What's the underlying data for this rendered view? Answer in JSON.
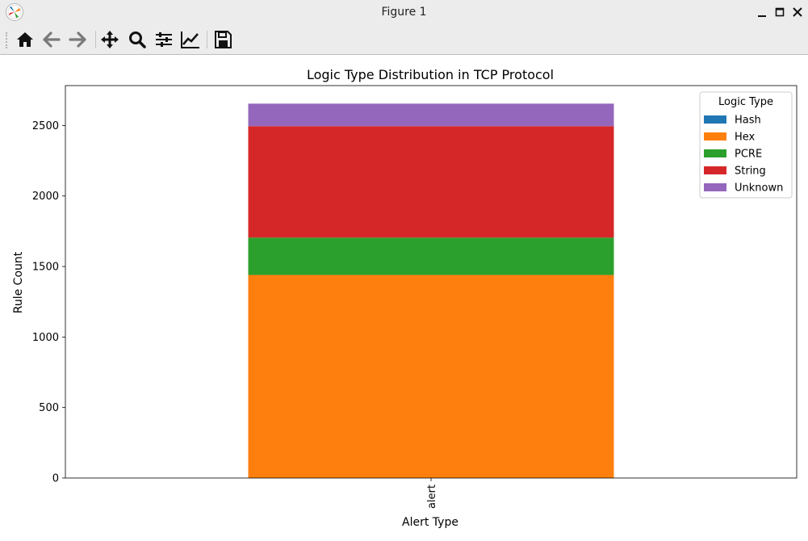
{
  "window": {
    "title": "Figure 1",
    "icons": [
      "app-icon",
      "minimize-icon",
      "maximize-icon",
      "close-icon"
    ]
  },
  "toolbar": {
    "buttons": [
      "home-icon",
      "back-arrow-icon",
      "forward-arrow-icon",
      "pan-icon",
      "zoom-icon",
      "configure-subplots-icon",
      "edit-axis-icon",
      "save-icon"
    ]
  },
  "chart_data": {
    "type": "bar",
    "stacked": true,
    "title": "Logic Type Distribution in TCP Protocol",
    "xlabel": "Alert Type",
    "ylabel": "Rule Count",
    "categories": [
      "alert"
    ],
    "ylim": [
      0,
      2783
    ],
    "yticks": [
      0,
      500,
      1000,
      1500,
      2000,
      2500
    ],
    "legend_title": "Logic Type",
    "legend_position": "top-right",
    "grid": false,
    "series": [
      {
        "name": "Hash",
        "values": [
          0
        ],
        "color": "#1f77b4"
      },
      {
        "name": "Hex",
        "values": [
          1440
        ],
        "color": "#ff7f0e"
      },
      {
        "name": "PCRE",
        "values": [
          265
        ],
        "color": "#2ca02c"
      },
      {
        "name": "String",
        "values": [
          790
        ],
        "color": "#d62728"
      },
      {
        "name": "Unknown",
        "values": [
          160
        ],
        "color": "#9467bd"
      }
    ]
  }
}
